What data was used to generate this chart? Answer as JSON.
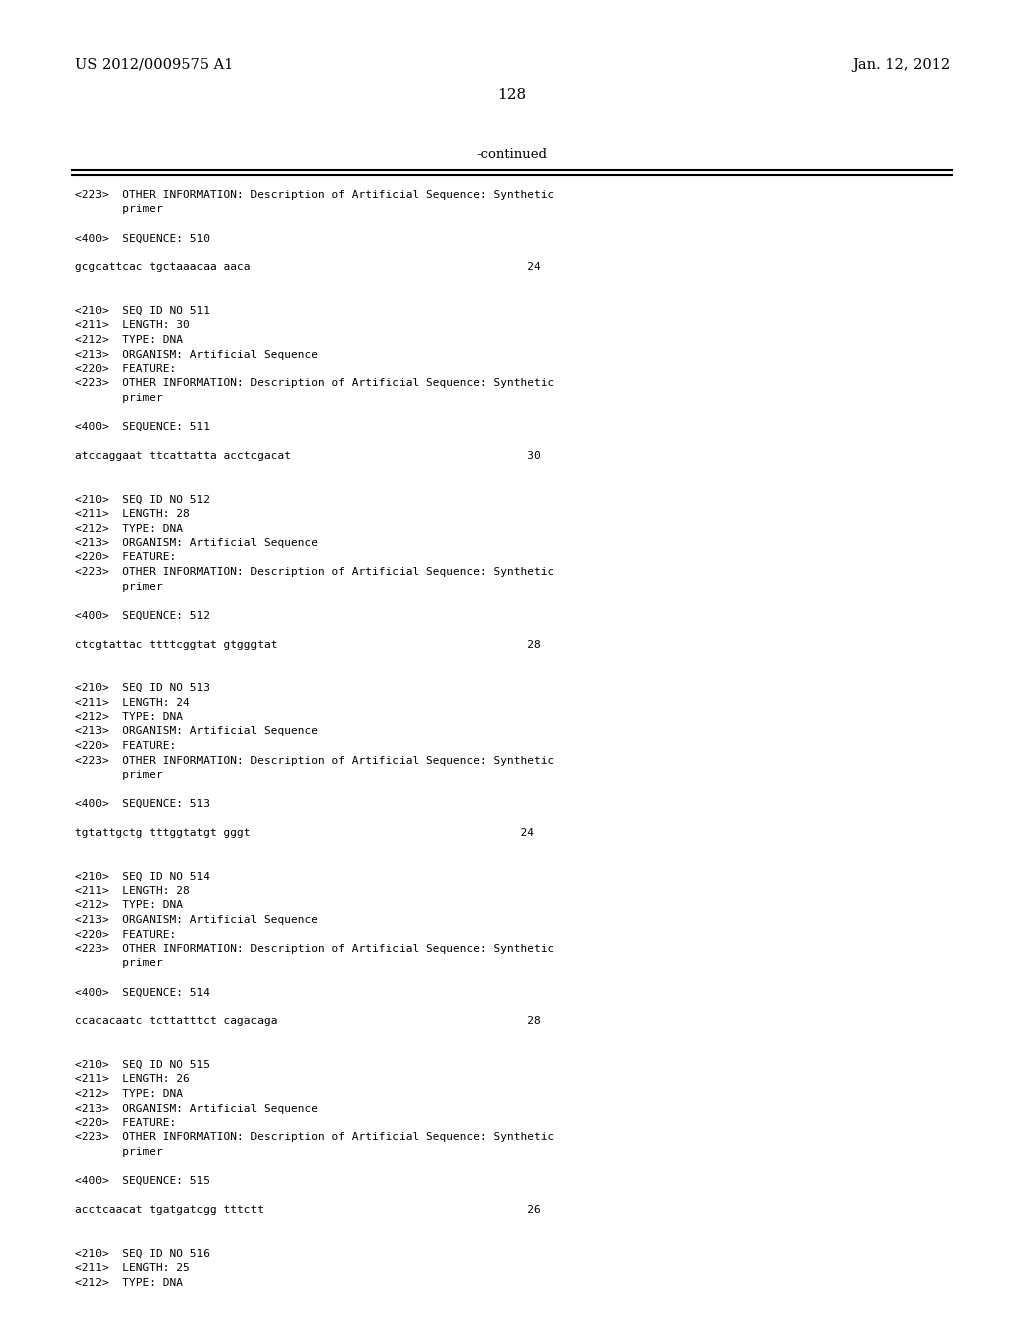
{
  "header_left": "US 2012/0009575 A1",
  "header_right": "Jan. 12, 2012",
  "page_number": "128",
  "continued_label": "-continued",
  "background_color": "#ffffff",
  "text_color": "#000000",
  "lines": [
    {
      "text": "<223>  OTHER INFORMATION: Description of Artificial Sequence: Synthetic",
      "empty": false
    },
    {
      "text": "       primer",
      "empty": false
    },
    {
      "text": "",
      "empty": true
    },
    {
      "text": "<400>  SEQUENCE: 510",
      "empty": false
    },
    {
      "text": "",
      "empty": true
    },
    {
      "text": "gcgcattcac tgctaaacaa aaca                                         24",
      "empty": false
    },
    {
      "text": "",
      "empty": true
    },
    {
      "text": "",
      "empty": true
    },
    {
      "text": "<210>  SEQ ID NO 511",
      "empty": false
    },
    {
      "text": "<211>  LENGTH: 30",
      "empty": false
    },
    {
      "text": "<212>  TYPE: DNA",
      "empty": false
    },
    {
      "text": "<213>  ORGANISM: Artificial Sequence",
      "empty": false
    },
    {
      "text": "<220>  FEATURE:",
      "empty": false
    },
    {
      "text": "<223>  OTHER INFORMATION: Description of Artificial Sequence: Synthetic",
      "empty": false
    },
    {
      "text": "       primer",
      "empty": false
    },
    {
      "text": "",
      "empty": true
    },
    {
      "text": "<400>  SEQUENCE: 511",
      "empty": false
    },
    {
      "text": "",
      "empty": true
    },
    {
      "text": "atccaggaat ttcattatta acctcgacat                                   30",
      "empty": false
    },
    {
      "text": "",
      "empty": true
    },
    {
      "text": "",
      "empty": true
    },
    {
      "text": "<210>  SEQ ID NO 512",
      "empty": false
    },
    {
      "text": "<211>  LENGTH: 28",
      "empty": false
    },
    {
      "text": "<212>  TYPE: DNA",
      "empty": false
    },
    {
      "text": "<213>  ORGANISM: Artificial Sequence",
      "empty": false
    },
    {
      "text": "<220>  FEATURE:",
      "empty": false
    },
    {
      "text": "<223>  OTHER INFORMATION: Description of Artificial Sequence: Synthetic",
      "empty": false
    },
    {
      "text": "       primer",
      "empty": false
    },
    {
      "text": "",
      "empty": true
    },
    {
      "text": "<400>  SEQUENCE: 512",
      "empty": false
    },
    {
      "text": "",
      "empty": true
    },
    {
      "text": "ctcgtattac ttttcggtat gtgggtat                                     28",
      "empty": false
    },
    {
      "text": "",
      "empty": true
    },
    {
      "text": "",
      "empty": true
    },
    {
      "text": "<210>  SEQ ID NO 513",
      "empty": false
    },
    {
      "text": "<211>  LENGTH: 24",
      "empty": false
    },
    {
      "text": "<212>  TYPE: DNA",
      "empty": false
    },
    {
      "text": "<213>  ORGANISM: Artificial Sequence",
      "empty": false
    },
    {
      "text": "<220>  FEATURE:",
      "empty": false
    },
    {
      "text": "<223>  OTHER INFORMATION: Description of Artificial Sequence: Synthetic",
      "empty": false
    },
    {
      "text": "       primer",
      "empty": false
    },
    {
      "text": "",
      "empty": true
    },
    {
      "text": "<400>  SEQUENCE: 513",
      "empty": false
    },
    {
      "text": "",
      "empty": true
    },
    {
      "text": "tgtattgctg tttggtatgt gggt                                        24",
      "empty": false
    },
    {
      "text": "",
      "empty": true
    },
    {
      "text": "",
      "empty": true
    },
    {
      "text": "<210>  SEQ ID NO 514",
      "empty": false
    },
    {
      "text": "<211>  LENGTH: 28",
      "empty": false
    },
    {
      "text": "<212>  TYPE: DNA",
      "empty": false
    },
    {
      "text": "<213>  ORGANISM: Artificial Sequence",
      "empty": false
    },
    {
      "text": "<220>  FEATURE:",
      "empty": false
    },
    {
      "text": "<223>  OTHER INFORMATION: Description of Artificial Sequence: Synthetic",
      "empty": false
    },
    {
      "text": "       primer",
      "empty": false
    },
    {
      "text": "",
      "empty": true
    },
    {
      "text": "<400>  SEQUENCE: 514",
      "empty": false
    },
    {
      "text": "",
      "empty": true
    },
    {
      "text": "ccacacaatc tcttatttct cagacaga                                     28",
      "empty": false
    },
    {
      "text": "",
      "empty": true
    },
    {
      "text": "",
      "empty": true
    },
    {
      "text": "<210>  SEQ ID NO 515",
      "empty": false
    },
    {
      "text": "<211>  LENGTH: 26",
      "empty": false
    },
    {
      "text": "<212>  TYPE: DNA",
      "empty": false
    },
    {
      "text": "<213>  ORGANISM: Artificial Sequence",
      "empty": false
    },
    {
      "text": "<220>  FEATURE:",
      "empty": false
    },
    {
      "text": "<223>  OTHER INFORMATION: Description of Artificial Sequence: Synthetic",
      "empty": false
    },
    {
      "text": "       primer",
      "empty": false
    },
    {
      "text": "",
      "empty": true
    },
    {
      "text": "<400>  SEQUENCE: 515",
      "empty": false
    },
    {
      "text": "",
      "empty": true
    },
    {
      "text": "acctcaacat tgatgatcgg tttctt                                       26",
      "empty": false
    },
    {
      "text": "",
      "empty": true
    },
    {
      "text": "",
      "empty": true
    },
    {
      "text": "<210>  SEQ ID NO 516",
      "empty": false
    },
    {
      "text": "<211>  LENGTH: 25",
      "empty": false
    },
    {
      "text": "<212>  TYPE: DNA",
      "empty": false
    }
  ]
}
